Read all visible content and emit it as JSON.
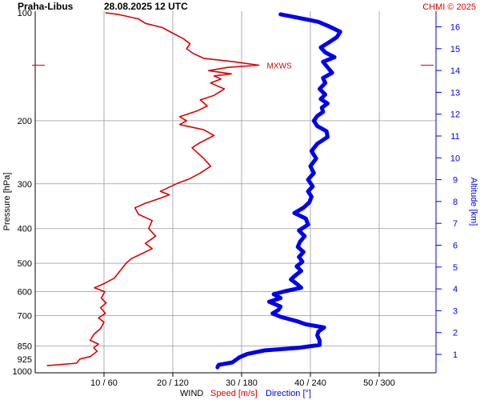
{
  "header": {
    "station": "Praha-Libus",
    "datetime": "28.08.2025 12 UTC",
    "credit": "CHMI © 2025"
  },
  "colors": {
    "speed": "#e00000",
    "direction": "#0000ee",
    "grid": "#999999",
    "text": "#000000"
  },
  "chart_data": {
    "type": "line",
    "title": "Praha-Libus    28.08.2025 12 UTC",
    "ylabel": "Pressure [hPa]",
    "y2label": "Altitude [km]",
    "xlabel": {
      "prefix": "WIND",
      "speed": "Speed [m/s]",
      "direction": "Direction [°]"
    },
    "annotation": "MXWS",
    "pressure_ticks": [
      {
        "p": 100,
        "label": "100"
      },
      {
        "p": 200,
        "label": "200"
      },
      {
        "p": 300,
        "label": "300"
      },
      {
        "p": 400,
        "label": "400"
      },
      {
        "p": 500,
        "label": "500"
      },
      {
        "p": 600,
        "label": "600"
      },
      {
        "p": 700,
        "label": "700"
      },
      {
        "p": 850,
        "label": "850"
      },
      {
        "p": 925,
        "label": "925"
      },
      {
        "p": 1000,
        "label": "1000"
      }
    ],
    "x_ticks": [
      {
        "speed": 10,
        "direction": 60,
        "label": "10 / 60"
      },
      {
        "speed": 20,
        "direction": 120,
        "label": "20 / 120"
      },
      {
        "speed": 30,
        "direction": 180,
        "label": "30 / 180"
      },
      {
        "speed": 40,
        "direction": 240,
        "label": "40 / 240"
      },
      {
        "speed": 50,
        "direction": 300,
        "label": "50 / 300"
      }
    ],
    "altitude_ticks": [
      "1",
      "2",
      "3",
      "4",
      "5",
      "6",
      "7",
      "8",
      "9",
      "10",
      "11",
      "12",
      "13",
      "14",
      "15",
      "16"
    ],
    "series": [
      {
        "name": "Speed [m/s]",
        "units": "m/s",
        "points": [
          [
            965,
            1.7
          ],
          [
            950,
            6.0
          ],
          [
            925,
            6.5
          ],
          [
            910,
            8.0
          ],
          [
            880,
            9.0
          ],
          [
            860,
            8.5
          ],
          [
            840,
            9.2
          ],
          [
            820,
            8.0
          ],
          [
            790,
            8.5
          ],
          [
            760,
            9.5
          ],
          [
            730,
            10.0
          ],
          [
            710,
            9.2
          ],
          [
            690,
            10.2
          ],
          [
            665,
            9.5
          ],
          [
            645,
            10.3
          ],
          [
            625,
            9.6
          ],
          [
            600,
            10.1
          ],
          [
            585,
            8.6
          ],
          [
            570,
            10.0
          ],
          [
            550,
            11.5
          ],
          [
            520,
            12.5
          ],
          [
            500,
            13.2
          ],
          [
            485,
            14.0
          ],
          [
            470,
            15.5
          ],
          [
            455,
            17.0
          ],
          [
            440,
            16.0
          ],
          [
            420,
            17.5
          ],
          [
            400,
            16.5
          ],
          [
            380,
            17.0
          ],
          [
            365,
            15.0
          ],
          [
            350,
            14.5
          ],
          [
            340,
            16.0
          ],
          [
            330,
            18.0
          ],
          [
            322,
            19.5
          ],
          [
            315,
            18.2
          ],
          [
            300,
            20.5
          ],
          [
            290,
            22.5
          ],
          [
            280,
            24.0
          ],
          [
            268,
            25.5
          ],
          [
            255,
            24.5
          ],
          [
            245,
            23.5
          ],
          [
            238,
            22.8
          ],
          [
            230,
            24.0
          ],
          [
            220,
            26.0
          ],
          [
            212,
            24.5
          ],
          [
            205,
            21.0
          ],
          [
            200,
            22.0
          ],
          [
            195,
            21.0
          ],
          [
            188,
            23.5
          ],
          [
            182,
            25.0
          ],
          [
            175,
            24.0
          ],
          [
            170,
            26.0
          ],
          [
            163,
            27.5
          ],
          [
            157,
            25.5
          ],
          [
            153,
            27.0
          ],
          [
            150,
            26.0
          ],
          [
            148,
            28.5
          ],
          [
            145,
            25.2
          ],
          [
            142,
            28.0
          ],
          [
            140,
            32.5
          ],
          [
            137,
            29.0
          ],
          [
            134,
            24.5
          ],
          [
            130,
            23.0
          ],
          [
            126,
            22.0
          ],
          [
            122,
            22.5
          ],
          [
            118,
            21.5
          ],
          [
            114,
            20.0
          ],
          [
            110,
            18.5
          ],
          [
            107,
            16.0
          ],
          [
            104,
            15.0
          ],
          [
            101,
            12.0
          ],
          [
            100,
            10.2
          ]
        ]
      },
      {
        "name": "Direction [°]",
        "units": "degrees",
        "points": [
          [
            975,
            159
          ],
          [
            960,
            160
          ],
          [
            945,
            172
          ],
          [
            930,
            175
          ],
          [
            915,
            178
          ],
          [
            895,
            185
          ],
          [
            875,
            200
          ],
          [
            860,
            230
          ],
          [
            845,
            248
          ],
          [
            820,
            248
          ],
          [
            795,
            246
          ],
          [
            775,
            247
          ],
          [
            755,
            252
          ],
          [
            740,
            236
          ],
          [
            725,
            228
          ],
          [
            705,
            214
          ],
          [
            690,
            207
          ],
          [
            675,
            212
          ],
          [
            660,
            214
          ],
          [
            640,
            204
          ],
          [
            625,
            214
          ],
          [
            610,
            208
          ],
          [
            598,
            218
          ],
          [
            585,
            232
          ],
          [
            570,
            228
          ],
          [
            555,
            223
          ],
          [
            540,
            227
          ],
          [
            525,
            232
          ],
          [
            510,
            228
          ],
          [
            495,
            233
          ],
          [
            480,
            230
          ],
          [
            465,
            234
          ],
          [
            450,
            229
          ],
          [
            435,
            231
          ],
          [
            420,
            235
          ],
          [
            405,
            230
          ],
          [
            390,
            238
          ],
          [
            375,
            236
          ],
          [
            362,
            226
          ],
          [
            350,
            234
          ],
          [
            338,
            239
          ],
          [
            326,
            241
          ],
          [
            315,
            238
          ],
          [
            305,
            242
          ],
          [
            292,
            238
          ],
          [
            280,
            243
          ],
          [
            268,
            240
          ],
          [
            255,
            245
          ],
          [
            243,
            241
          ],
          [
            232,
            246
          ],
          [
            222,
            255
          ],
          [
            214,
            254
          ],
          [
            207,
            246
          ],
          [
            200,
            243
          ],
          [
            194,
            246
          ],
          [
            189,
            251
          ],
          [
            184,
            250
          ],
          [
            179,
            255
          ],
          [
            174,
            249
          ],
          [
            169,
            253
          ],
          [
            163,
            248
          ],
          [
            157,
            253
          ],
          [
            152,
            251
          ],
          [
            147,
            259
          ],
          [
            142,
            255
          ],
          [
            137,
            251
          ],
          [
            133,
            261
          ],
          [
            129,
            253
          ],
          [
            125,
            249
          ],
          [
            121,
            256
          ],
          [
            117,
            263
          ],
          [
            113,
            266
          ],
          [
            109,
            256
          ],
          [
            106,
            247
          ],
          [
            103,
            228
          ],
          [
            101,
            214
          ]
        ]
      }
    ]
  }
}
